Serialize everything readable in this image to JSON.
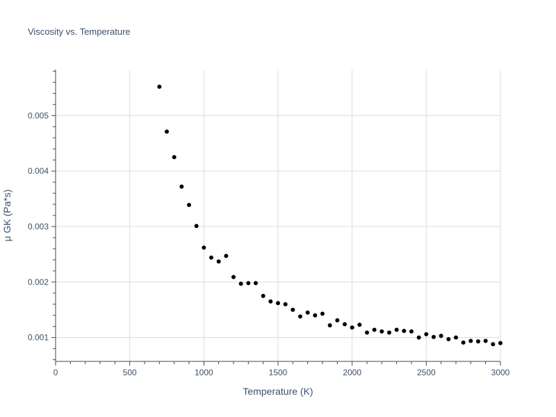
{
  "chart_data": {
    "type": "scatter",
    "title": "Viscosity vs. Temperature",
    "xlabel": "Temperature (K)",
    "ylabel": "μ GK (Pa*s)",
    "xlim": [
      0,
      3000
    ],
    "ylim": [
      0.00057,
      0.00583
    ],
    "xticks": [
      0,
      500,
      1000,
      1500,
      2000,
      2500,
      3000
    ],
    "yticks": [
      0.001,
      0.002,
      0.003,
      0.004,
      0.005
    ],
    "xtick_labels": [
      "0",
      "500",
      "1000",
      "1500",
      "2000",
      "2500",
      "3000"
    ],
    "ytick_labels": [
      "0.001",
      "0.002",
      "0.003",
      "0.004",
      "0.005"
    ],
    "grid": true,
    "marker_color": "#000000",
    "series": [
      {
        "x": [
          700,
          750,
          800,
          850,
          900,
          950,
          1000,
          1050,
          1100,
          1150,
          1200,
          1250,
          1300,
          1350,
          1400,
          1450,
          1500,
          1550,
          1600,
          1650,
          1700,
          1750,
          1800,
          1850,
          1900,
          1950,
          2000,
          2050,
          2100,
          2150,
          2200,
          2250,
          2300,
          2350,
          2400,
          2450,
          2500,
          2550,
          2600,
          2650,
          2700,
          2750,
          2800,
          2850,
          2900,
          2950,
          3000
        ],
        "y": [
          0.00552,
          0.00471,
          0.00425,
          0.00372,
          0.00339,
          0.00301,
          0.00262,
          0.00244,
          0.00237,
          0.00247,
          0.00209,
          0.00197,
          0.00198,
          0.00198,
          0.00175,
          0.00165,
          0.00162,
          0.0016,
          0.0015,
          0.00138,
          0.00145,
          0.0014,
          0.00143,
          0.00122,
          0.00131,
          0.00124,
          0.00118,
          0.00123,
          0.00109,
          0.00114,
          0.00111,
          0.00109,
          0.00114,
          0.00112,
          0.00111,
          0.001,
          0.00106,
          0.00101,
          0.00103,
          0.00097,
          0.001,
          0.00091,
          0.00094,
          0.00093,
          0.00094,
          0.00088,
          0.0009
        ]
      }
    ]
  }
}
